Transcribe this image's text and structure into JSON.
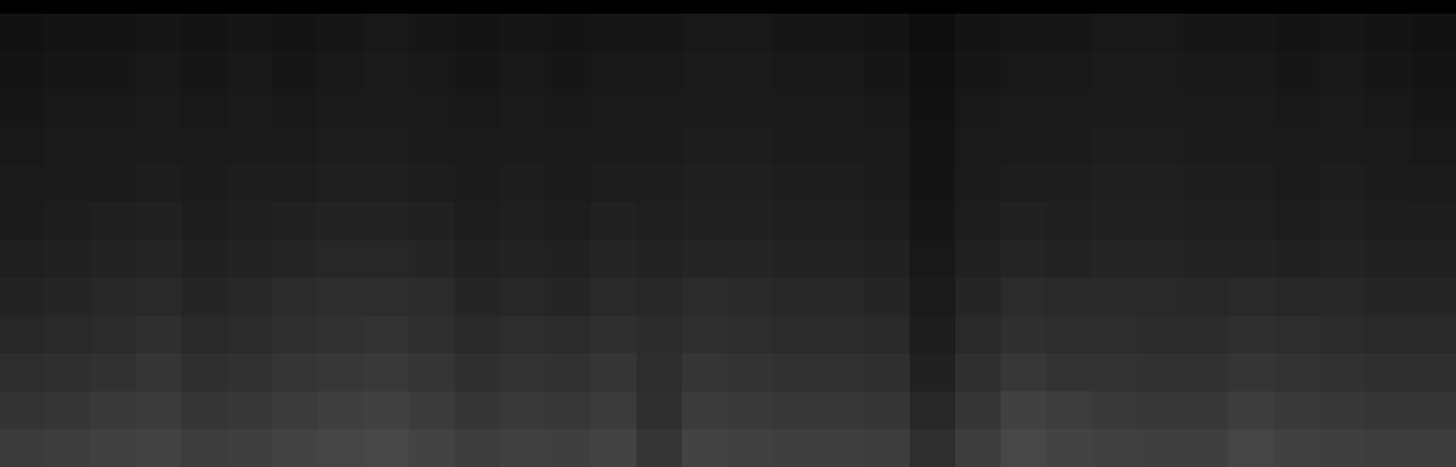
{
  "chart_data": {
    "type": "heatmap",
    "tick_labels": false,
    "color_range": [
      0,
      130
    ],
    "cells": [
      [
        9,
        10,
        10,
        11,
        10,
        11,
        10,
        11,
        12,
        11,
        10,
        11,
        10,
        11,
        11,
        12,
        12,
        11,
        11,
        10,
        7,
        10,
        11,
        11,
        12,
        12,
        11,
        11,
        10,
        11,
        10,
        9
      ],
      [
        10,
        11,
        11,
        12,
        11,
        12,
        11,
        12,
        13,
        12,
        11,
        12,
        11,
        12,
        12,
        13,
        13,
        12,
        12,
        11,
        8,
        11,
        12,
        12,
        13,
        13,
        12,
        12,
        11,
        12,
        11,
        10
      ],
      [
        11,
        12,
        12,
        13,
        12,
        13,
        12,
        13,
        14,
        13,
        12,
        13,
        12,
        13,
        13,
        14,
        14,
        13,
        13,
        12,
        9,
        12,
        13,
        13,
        14,
        14,
        13,
        13,
        12,
        13,
        12,
        11
      ],
      [
        12,
        13,
        13,
        14,
        13,
        14,
        14,
        15,
        15,
        14,
        13,
        14,
        13,
        14,
        14,
        15,
        15,
        14,
        14,
        13,
        10,
        13,
        14,
        14,
        15,
        15,
        14,
        14,
        13,
        14,
        13,
        12
      ],
      [
        13,
        14,
        14,
        15,
        14,
        15,
        15,
        16,
        16,
        15,
        14,
        15,
        14,
        15,
        15,
        16,
        16,
        15,
        15,
        14,
        10,
        14,
        15,
        15,
        16,
        16,
        15,
        15,
        14,
        15,
        14,
        13
      ],
      [
        14,
        15,
        16,
        17,
        15,
        16,
        17,
        18,
        18,
        17,
        15,
        16,
        15,
        17,
        16,
        17,
        17,
        16,
        16,
        15,
        11,
        15,
        17,
        16,
        17,
        17,
        16,
        16,
        15,
        16,
        15,
        15
      ],
      [
        16,
        17,
        18,
        19,
        17,
        18,
        19,
        20,
        20,
        19,
        17,
        18,
        17,
        19,
        18,
        19,
        19,
        18,
        18,
        17,
        12,
        17,
        19,
        18,
        19,
        19,
        18,
        18,
        17,
        18,
        17,
        17
      ],
      [
        18,
        19,
        20,
        21,
        19,
        20,
        22,
        23,
        23,
        22,
        19,
        20,
        19,
        21,
        20,
        22,
        21,
        20,
        20,
        19,
        13,
        19,
        22,
        21,
        21,
        21,
        20,
        21,
        20,
        20,
        19,
        19
      ],
      [
        20,
        21,
        22,
        24,
        21,
        22,
        24,
        25,
        26,
        24,
        21,
        23,
        22,
        24,
        22,
        24,
        23,
        22,
        22,
        21,
        15,
        21,
        24,
        23,
        23,
        22,
        22,
        24,
        23,
        22,
        21,
        21
      ],
      [
        23,
        24,
        25,
        27,
        24,
        25,
        27,
        28,
        29,
        27,
        24,
        26,
        25,
        27,
        23,
        27,
        26,
        25,
        25,
        24,
        17,
        24,
        28,
        26,
        26,
        25,
        25,
        27,
        26,
        25,
        24,
        24
      ],
      [
        26,
        27,
        29,
        30,
        27,
        28,
        30,
        32,
        33,
        30,
        27,
        29,
        28,
        30,
        24,
        30,
        29,
        28,
        28,
        27,
        20,
        27,
        33,
        31,
        29,
        28,
        28,
        31,
        29,
        28,
        27,
        27
      ],
      [
        30,
        31,
        33,
        34,
        31,
        32,
        34,
        35,
        36,
        34,
        31,
        33,
        32,
        34,
        27,
        34,
        33,
        32,
        32,
        31,
        24,
        31,
        36,
        34,
        33,
        32,
        32,
        35,
        33,
        32,
        31,
        31
      ]
    ]
  }
}
